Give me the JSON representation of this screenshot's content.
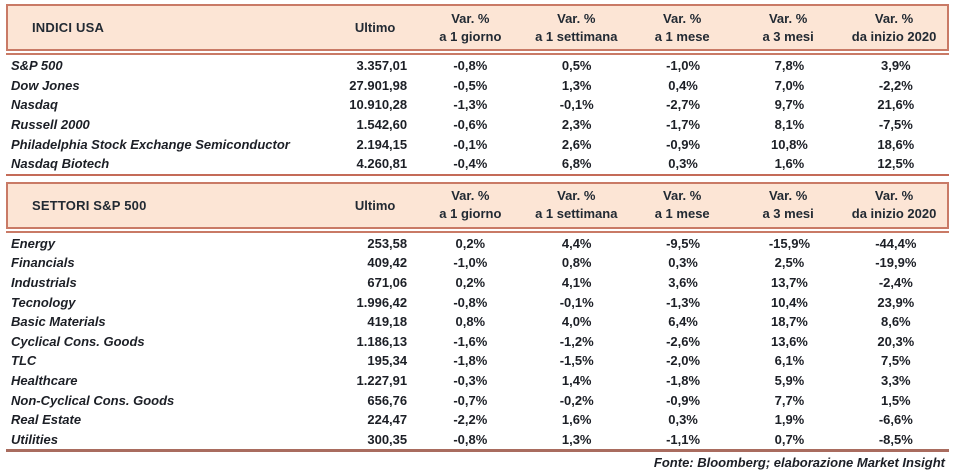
{
  "colors": {
    "header_bg": "#fce5d5",
    "header_border": "#c97a66",
    "table_rule": "#c46b58",
    "final_rule": "#a96c5f",
    "text": "#1c1f26"
  },
  "footer": "Fonte: Bloomberg; elaborazione Market Insight",
  "tables": [
    {
      "title": "INDICI USA",
      "ultimo_header": "Ultimo",
      "var_headers": [
        [
          "Var. %",
          "a 1 giorno"
        ],
        [
          "Var. %",
          "a 1 settimana"
        ],
        [
          "Var. %",
          "a 1 mese"
        ],
        [
          "Var. %",
          "a 3 mesi"
        ],
        [
          "Var. %",
          "da inizio 2020"
        ]
      ],
      "rows": [
        {
          "label": "S&P 500",
          "ultimo": "3.357,01",
          "values": [
            "-0,8%",
            "0,5%",
            "-1,0%",
            "7,8%",
            "3,9%"
          ]
        },
        {
          "label": "Dow Jones",
          "ultimo": "27.901,98",
          "values": [
            "-0,5%",
            "1,3%",
            "0,4%",
            "7,0%",
            "-2,2%"
          ]
        },
        {
          "label": "Nasdaq",
          "ultimo": "10.910,28",
          "values": [
            "-1,3%",
            "-0,1%",
            "-2,7%",
            "9,7%",
            "21,6%"
          ]
        },
        {
          "label": "Russell 2000",
          "ultimo": "1.542,60",
          "values": [
            "-0,6%",
            "2,3%",
            "-1,7%",
            "8,1%",
            "-7,5%"
          ]
        },
        {
          "label": "Philadelphia Stock Exchange Semiconductor",
          "ultimo": "2.194,15",
          "values": [
            "-0,1%",
            "2,6%",
            "-0,9%",
            "10,8%",
            "18,6%"
          ]
        },
        {
          "label": "Nasdaq Biotech",
          "ultimo": "4.260,81",
          "values": [
            "-0,4%",
            "6,8%",
            "0,3%",
            "1,6%",
            "12,5%"
          ]
        }
      ]
    },
    {
      "title": "SETTORI S&P 500",
      "ultimo_header": "Ultimo",
      "var_headers": [
        [
          "Var. %",
          "a 1 giorno"
        ],
        [
          "Var. %",
          "a 1 settimana"
        ],
        [
          "Var. %",
          "a 1 mese"
        ],
        [
          "Var. %",
          "a 3 mesi"
        ],
        [
          "Var. %",
          "da inizio 2020"
        ]
      ],
      "rows": [
        {
          "label": "Energy",
          "ultimo": "253,58",
          "values": [
            "0,2%",
            "4,4%",
            "-9,5%",
            "-15,9%",
            "-44,4%"
          ]
        },
        {
          "label": "Financials",
          "ultimo": "409,42",
          "values": [
            "-1,0%",
            "0,8%",
            "0,3%",
            "2,5%",
            "-19,9%"
          ]
        },
        {
          "label": "Industrials",
          "ultimo": "671,06",
          "values": [
            "0,2%",
            "4,1%",
            "3,6%",
            "13,7%",
            "-2,4%"
          ]
        },
        {
          "label": "Tecnology",
          "ultimo": "1.996,42",
          "values": [
            "-0,8%",
            "-0,1%",
            "-1,3%",
            "10,4%",
            "23,9%"
          ]
        },
        {
          "label": "Basic Materials",
          "ultimo": "419,18",
          "values": [
            "0,8%",
            "4,0%",
            "6,4%",
            "18,7%",
            "8,6%"
          ]
        },
        {
          "label": "Cyclical Cons. Goods",
          "ultimo": "1.186,13",
          "values": [
            "-1,6%",
            "-1,2%",
            "-2,6%",
            "13,6%",
            "20,3%"
          ]
        },
        {
          "label": "TLC",
          "ultimo": "195,34",
          "values": [
            "-1,8%",
            "-1,5%",
            "-2,0%",
            "6,1%",
            "7,5%"
          ]
        },
        {
          "label": "Healthcare",
          "ultimo": "1.227,91",
          "values": [
            "-0,3%",
            "1,4%",
            "-1,8%",
            "5,9%",
            "3,3%"
          ]
        },
        {
          "label": "Non-Cyclical Cons. Goods",
          "ultimo": "656,76",
          "values": [
            "-0,7%",
            "-0,2%",
            "-0,9%",
            "7,7%",
            "1,5%"
          ]
        },
        {
          "label": "Real Estate",
          "ultimo": "224,47",
          "values": [
            "-2,2%",
            "1,6%",
            "0,3%",
            "1,9%",
            "-6,6%"
          ]
        },
        {
          "label": "Utilities",
          "ultimo": "300,35",
          "values": [
            "-0,8%",
            "1,3%",
            "-1,1%",
            "0,7%",
            "-8,5%"
          ]
        }
      ]
    }
  ]
}
